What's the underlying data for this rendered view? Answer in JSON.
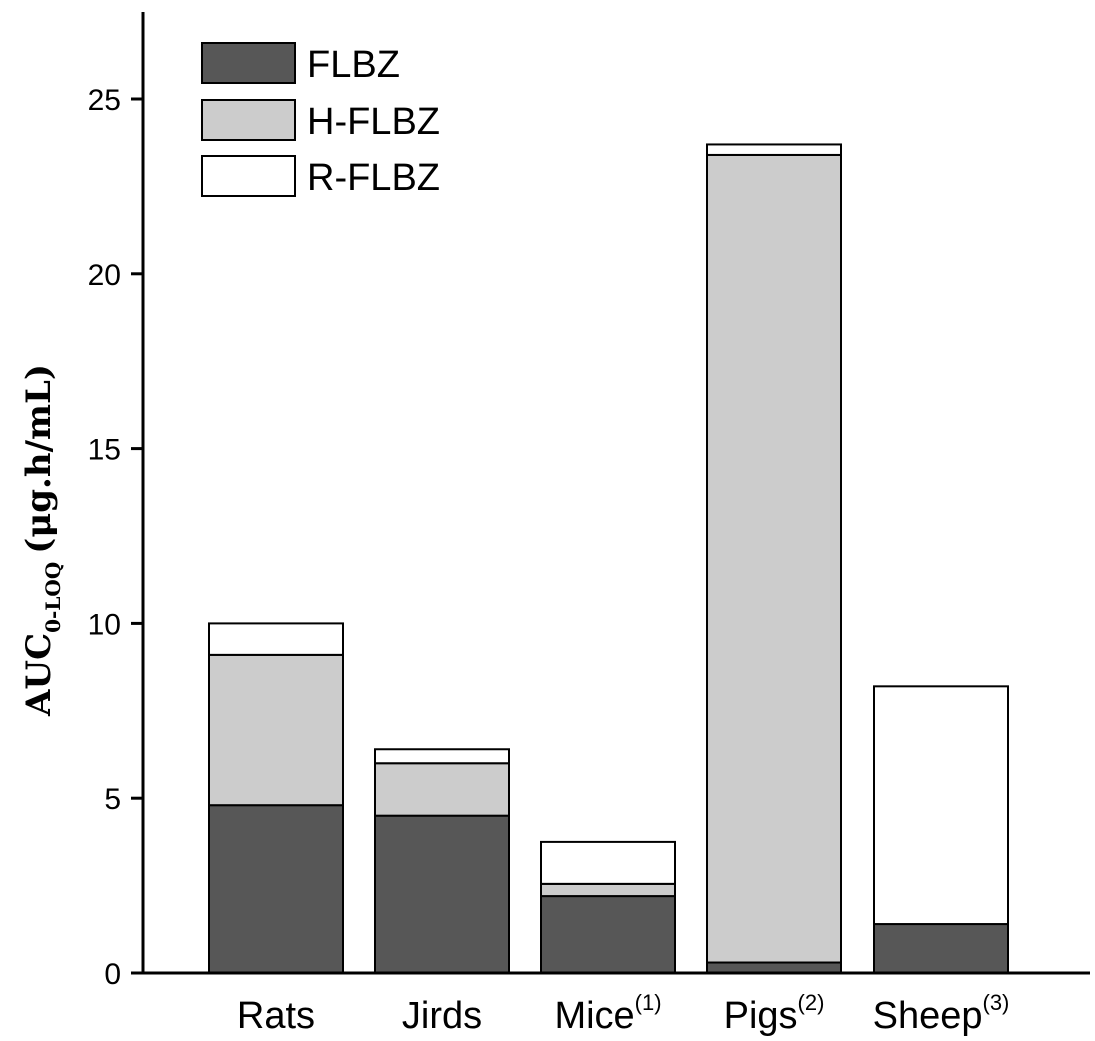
{
  "chart_data": {
    "type": "bar",
    "stacked": true,
    "categories": [
      "Rats",
      "Jirds",
      "Mice",
      "Pigs",
      "Sheep"
    ],
    "category_superscripts": [
      "",
      "",
      "(1)",
      "(2)",
      "(3)"
    ],
    "series": [
      {
        "name": "FLBZ",
        "color": "#575757",
        "values": [
          4.8,
          4.5,
          2.2,
          0.3,
          1.4
        ]
      },
      {
        "name": "H-FLBZ",
        "color": "#cccccc",
        "values": [
          4.3,
          1.5,
          0.35,
          23.1,
          0.0
        ]
      },
      {
        "name": "R-FLBZ",
        "color": "#ffffff",
        "values": [
          0.9,
          0.4,
          1.2,
          0.3,
          6.8
        ]
      }
    ],
    "ylabel": {
      "main": "AUC",
      "subscript": "0-LOQ",
      "units": "(μg.h/mL)"
    },
    "ylim": [
      0,
      27.5
    ],
    "yticks": [
      "0",
      "5",
      "10",
      "15",
      "20",
      "25"
    ],
    "ytick_values": [
      0,
      5,
      10,
      15,
      20,
      25
    ],
    "grid": false,
    "legend_position": "top-left"
  }
}
